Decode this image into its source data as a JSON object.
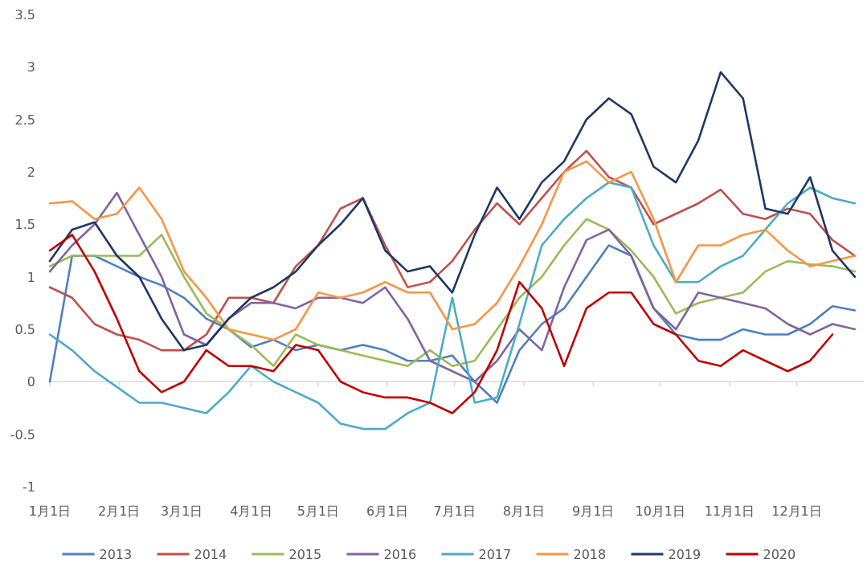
{
  "chart_data": {
    "type": "line",
    "legend": "bottom",
    "marker": "none",
    "line_style": "solid",
    "x": [
      "--01-01",
      "--01-11",
      "--01-21",
      "--01-31",
      "--02-10",
      "--02-20",
      "--03-02",
      "--03-12",
      "--03-22",
      "--04-01",
      "--04-11",
      "--04-21",
      "--05-01",
      "--05-11",
      "--05-21",
      "--05-31",
      "--06-10",
      "--06-20",
      "--06-30",
      "--07-10",
      "--07-20",
      "--07-30",
      "--08-09",
      "--08-19",
      "--08-29",
      "--09-08",
      "--09-18",
      "--09-28",
      "--10-08",
      "--10-18",
      "--10-28",
      "--11-07",
      "--11-17",
      "--11-27",
      "--12-07",
      "--12-17",
      "--12-27"
    ],
    "xlim": [
      "--01-01",
      "--12-31"
    ],
    "xticks": [
      {
        "value": "--01-01",
        "label": "1月1日"
      },
      {
        "value": "--02-01",
        "label": "2月1日"
      },
      {
        "value": "--03-01",
        "label": "3月1日"
      },
      {
        "value": "--04-01",
        "label": "4月1日"
      },
      {
        "value": "--05-01",
        "label": "5月1日"
      },
      {
        "value": "--06-01",
        "label": "6月1日"
      },
      {
        "value": "--07-01",
        "label": "7月1日"
      },
      {
        "value": "--08-01",
        "label": "8月1日"
      },
      {
        "value": "--09-01",
        "label": "9月1日"
      },
      {
        "value": "--10-01",
        "label": "10月1日"
      },
      {
        "value": "--11-01",
        "label": "11月1日"
      },
      {
        "value": "--12-01",
        "label": "12月1日"
      }
    ],
    "ylim": [
      -1,
      3.5
    ],
    "yticks": [
      -1,
      -0.5,
      0,
      0.5,
      1,
      1.5,
      2,
      2.5,
      3,
      3.5
    ],
    "series": [
      {
        "name": "2013",
        "color": "#4f81bd",
        "values": [
          0,
          1.2,
          1.2,
          1.1,
          1.0,
          0.92,
          0.8,
          0.6,
          0.5,
          0.33,
          0.4,
          0.3,
          0.35,
          0.3,
          0.35,
          0.3,
          0.2,
          0.2,
          0.25,
          0.0,
          -0.2,
          0.3,
          0.55,
          0.7,
          1.0,
          1.3,
          1.2,
          0.7,
          0.45,
          0.4,
          0.4,
          0.5,
          0.45,
          0.45,
          0.55,
          0.72,
          0.68
        ]
      },
      {
        "name": "2014",
        "color": "#c0504d",
        "values": [
          0.9,
          0.8,
          0.55,
          0.45,
          0.4,
          0.3,
          0.3,
          0.45,
          0.8,
          0.8,
          0.75,
          1.1,
          1.3,
          1.65,
          1.75,
          1.3,
          0.9,
          0.95,
          1.15,
          1.45,
          1.7,
          1.5,
          1.75,
          2.0,
          2.2,
          1.95,
          1.85,
          1.5,
          1.6,
          1.7,
          1.83,
          1.6,
          1.55,
          1.65,
          1.6,
          1.35,
          1.2
        ]
      },
      {
        "name": "2015",
        "color": "#9bbb59",
        "values": [
          1.1,
          1.2,
          1.2,
          1.2,
          1.2,
          1.4,
          1.0,
          0.65,
          0.5,
          0.35,
          0.15,
          0.45,
          0.35,
          0.3,
          0.25,
          0.2,
          0.15,
          0.3,
          0.15,
          0.2,
          0.5,
          0.8,
          1.0,
          1.3,
          1.55,
          1.45,
          1.25,
          1.0,
          0.65,
          0.75,
          0.8,
          0.85,
          1.05,
          1.15,
          1.12,
          1.1,
          1.05
        ]
      },
      {
        "name": "2016",
        "color": "#8064a2",
        "values": [
          1.05,
          1.3,
          1.5,
          1.8,
          1.4,
          1.0,
          0.45,
          0.35,
          0.6,
          0.75,
          0.75,
          0.7,
          0.8,
          0.8,
          0.75,
          0.9,
          0.6,
          0.2,
          0.1,
          0.0,
          0.2,
          0.5,
          0.3,
          0.9,
          1.35,
          1.45,
          1.2,
          0.7,
          0.5,
          0.85,
          0.8,
          0.75,
          0.7,
          0.55,
          0.45,
          0.55,
          0.5
        ]
      },
      {
        "name": "2017",
        "color": "#4bacc6",
        "values": [
          0.45,
          0.3,
          0.1,
          -0.05,
          -0.2,
          -0.2,
          -0.25,
          -0.3,
          -0.1,
          0.15,
          0.0,
          -0.1,
          -0.2,
          -0.4,
          -0.45,
          -0.45,
          -0.3,
          -0.2,
          0.8,
          -0.2,
          -0.15,
          0.55,
          1.3,
          1.55,
          1.75,
          1.9,
          1.85,
          1.3,
          0.95,
          0.95,
          1.1,
          1.2,
          1.45,
          1.7,
          1.85,
          1.75,
          1.7
        ]
      },
      {
        "name": "2018",
        "color": "#f79646",
        "values": [
          1.7,
          1.72,
          1.55,
          1.6,
          1.85,
          1.55,
          1.05,
          0.8,
          0.5,
          0.45,
          0.4,
          0.5,
          0.85,
          0.8,
          0.85,
          0.95,
          0.85,
          0.85,
          0.5,
          0.55,
          0.75,
          1.1,
          1.5,
          2.0,
          2.1,
          1.9,
          2.0,
          1.55,
          0.95,
          1.3,
          1.3,
          1.4,
          1.45,
          1.25,
          1.1,
          1.15,
          1.2
        ]
      },
      {
        "name": "2019",
        "color": "#1f3864",
        "values": [
          1.15,
          1.45,
          1.52,
          1.2,
          1.0,
          0.6,
          0.3,
          0.35,
          0.6,
          0.8,
          0.9,
          1.05,
          1.3,
          1.5,
          1.75,
          1.25,
          1.05,
          1.1,
          0.85,
          1.4,
          1.85,
          1.55,
          1.9,
          2.1,
          2.5,
          2.7,
          2.55,
          2.05,
          1.9,
          2.3,
          2.95,
          2.7,
          1.65,
          1.6,
          1.95,
          1.25,
          1.0
        ]
      },
      {
        "name": "2020",
        "color": "#c00000",
        "values": [
          1.25,
          1.4,
          1.05,
          0.6,
          0.1,
          -0.1,
          0.0,
          0.3,
          0.15,
          0.15,
          0.1,
          0.35,
          0.3,
          0.0,
          -0.1,
          -0.15,
          -0.15,
          -0.2,
          -0.3,
          -0.1,
          0.3,
          0.95,
          0.7,
          0.15,
          0.7,
          0.85,
          0.85,
          0.55,
          0.45,
          0.2,
          0.15,
          0.3,
          0.2,
          0.1,
          0.2,
          0.45,
          null
        ]
      }
    ]
  }
}
